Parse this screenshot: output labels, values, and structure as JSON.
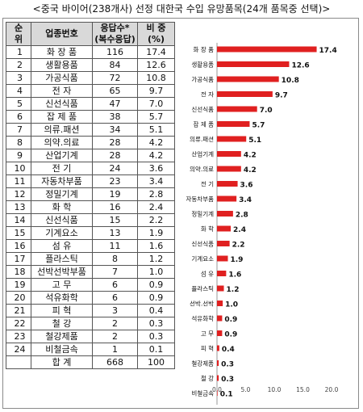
{
  "caption": "<중국 바이어(238개사) 선정 대한국 수입 유망품목(24개 품목중 선택)>",
  "table": {
    "headers": {
      "rank": [
        "순",
        "위"
      ],
      "item": "업종번호",
      "responses": [
        "응답수*",
        "(복수응답)"
      ],
      "share": [
        "비 중",
        "(%)"
      ]
    },
    "rows": [
      {
        "rank": "1",
        "item": "화 장 품",
        "count": "116",
        "pct": "17.4"
      },
      {
        "rank": "2",
        "item": "생활용품",
        "count": "84",
        "pct": "12.6"
      },
      {
        "rank": "3",
        "item": "가공식품",
        "count": "72",
        "pct": "10.8"
      },
      {
        "rank": "4",
        "item": "전 자",
        "count": "65",
        "pct": "9.7"
      },
      {
        "rank": "5",
        "item": "신선식품",
        "count": "47",
        "pct": "7.0"
      },
      {
        "rank": "6",
        "item": "잡 제 품",
        "count": "38",
        "pct": "5.7"
      },
      {
        "rank": "7",
        "item": "의류.패션",
        "count": "34",
        "pct": "5.1"
      },
      {
        "rank": "8",
        "item": "의약.의료",
        "count": "28",
        "pct": "4.2"
      },
      {
        "rank": "9",
        "item": "산업기계",
        "count": "28",
        "pct": "4.2"
      },
      {
        "rank": "10",
        "item": "전 기",
        "count": "24",
        "pct": "3.6"
      },
      {
        "rank": "11",
        "item": "자동차부품",
        "count": "23",
        "pct": "3.4"
      },
      {
        "rank": "12",
        "item": "정밀기계",
        "count": "19",
        "pct": "2.8"
      },
      {
        "rank": "13",
        "item": "화 학",
        "count": "16",
        "pct": "2.4"
      },
      {
        "rank": "14",
        "item": "신선식품",
        "count": "15",
        "pct": "2.2"
      },
      {
        "rank": "15",
        "item": "기계요소",
        "count": "13",
        "pct": "1.9"
      },
      {
        "rank": "16",
        "item": "섬 유",
        "count": "11",
        "pct": "1.6"
      },
      {
        "rank": "17",
        "item": "플라스틱",
        "count": "8",
        "pct": "1.2"
      },
      {
        "rank": "18",
        "item": "선박선박부품",
        "count": "7",
        "pct": "1.0"
      },
      {
        "rank": "19",
        "item": "고 무",
        "count": "6",
        "pct": "0.9"
      },
      {
        "rank": "20",
        "item": "석유화학",
        "count": "6",
        "pct": "0.9"
      },
      {
        "rank": "21",
        "item": "피 혁",
        "count": "3",
        "pct": "0.4"
      },
      {
        "rank": "22",
        "item": "철 강",
        "count": "2",
        "pct": "0.3"
      },
      {
        "rank": "23",
        "item": "철강제품",
        "count": "2",
        "pct": "0.3"
      },
      {
        "rank": "24",
        "item": "비철금속",
        "count": "1",
        "pct": "0.1"
      }
    ],
    "total": {
      "rank": "",
      "item": "합 계",
      "count": "668",
      "pct": "100"
    }
  },
  "colors": {
    "bar": "#e02020",
    "header_bg": "#d9d9d9"
  },
  "chart_data": {
    "type": "bar",
    "orientation": "horizontal",
    "categories": [
      "화 장 품",
      "생활용품",
      "가공식품",
      "전 자",
      "신선식품",
      "잡 제 품",
      "의류.패션",
      "산업기계",
      "의약.의료",
      "전 기",
      "자동차부품",
      "정밀기계",
      "화 학",
      "신선식품",
      "기계요소",
      "섬 유",
      "플라스틱",
      "선박.선박",
      "석유화학",
      "고 무",
      "피 혁",
      "철강제품",
      "철 강",
      "비철금속"
    ],
    "values": [
      17.4,
      12.6,
      10.8,
      9.7,
      7.0,
      5.7,
      5.1,
      4.2,
      4.2,
      3.6,
      3.4,
      2.8,
      2.4,
      2.2,
      1.9,
      1.6,
      1.2,
      1.0,
      0.9,
      0.9,
      0.4,
      0.3,
      0.3,
      0.1
    ],
    "value_labels": [
      "17.4",
      "12.6",
      "10.8",
      "9.7",
      "7.0",
      "5.7",
      "5.1",
      "4.2",
      "4.2",
      "3.6",
      "3.4",
      "2.8",
      "2.4",
      "2.2",
      "1.9",
      "1.6",
      "1.2",
      "1.0",
      "0.9",
      "0.9",
      "0.4",
      "0.3",
      "0.3",
      "0.1"
    ],
    "xlim": [
      0,
      20
    ],
    "xticks": [
      0,
      5,
      10,
      15,
      20
    ],
    "xtick_labels": [
      "0.0",
      "5.0",
      "10.0",
      "15.0",
      "20.0"
    ],
    "title": "",
    "xlabel": "",
    "ylabel": "",
    "grid": false,
    "legend": "none"
  }
}
